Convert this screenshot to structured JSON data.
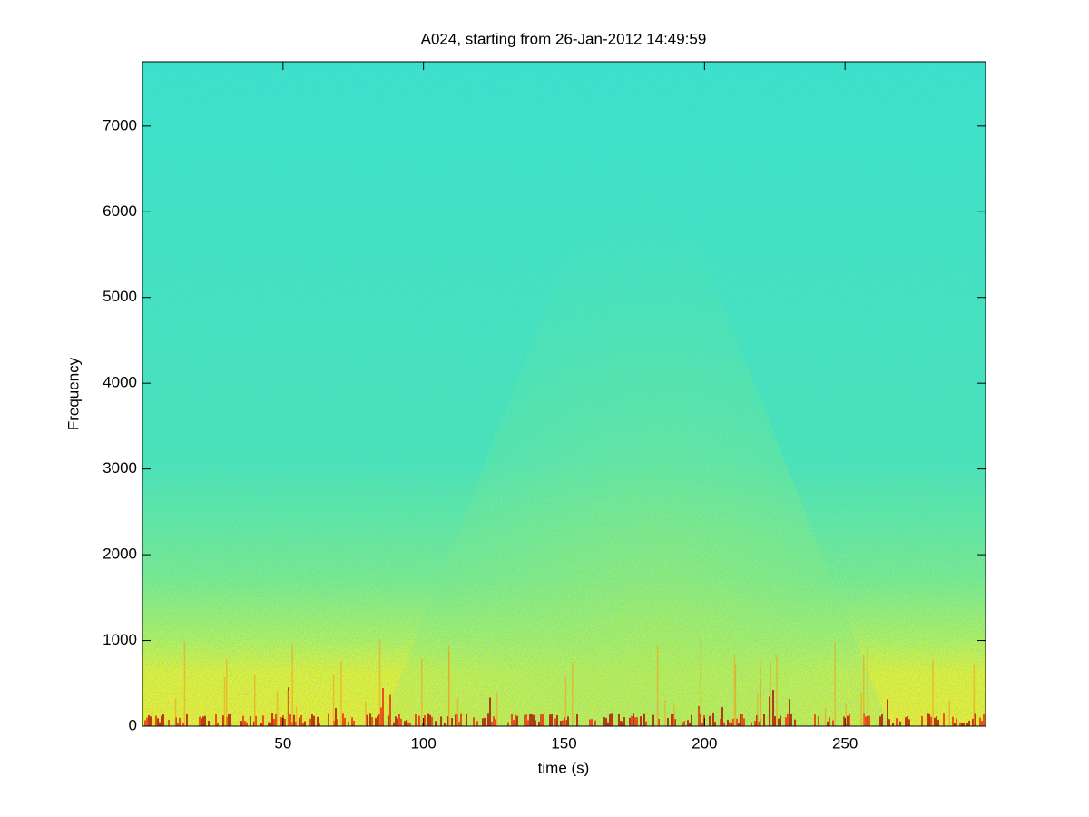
{
  "chart_data": {
    "type": "spectrogram",
    "title": "A024, starting from 26-Jan-2012 14:49:59",
    "x_label": "time (s)",
    "y_label": "Frequency",
    "xlim": [
      0,
      300
    ],
    "ylim": [
      0,
      7750
    ],
    "xticks": [
      50,
      100,
      150,
      200,
      250
    ],
    "yticks": [
      0,
      1000,
      2000,
      3000,
      4000,
      5000,
      6000,
      7000
    ],
    "grid": false
  }
}
